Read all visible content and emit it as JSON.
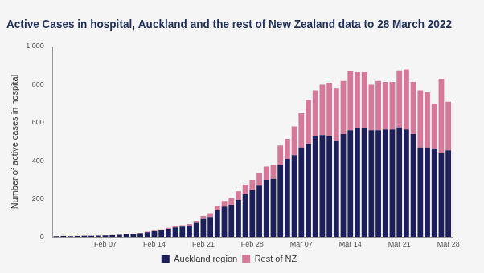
{
  "chart_data": {
    "type": "bar",
    "title": "Active Cases in hospital, Auckland and the rest of New Zealand data to 28 March 2022",
    "y_label": "Number of active cases in hospital",
    "categories": [
      null,
      null,
      null,
      null,
      null,
      null,
      null,
      "Feb 07",
      null,
      null,
      null,
      null,
      null,
      null,
      "Feb 14",
      null,
      null,
      null,
      null,
      null,
      null,
      "Feb 21",
      null,
      null,
      null,
      null,
      null,
      null,
      "Feb 28",
      null,
      null,
      null,
      null,
      null,
      null,
      "Mar 07",
      null,
      null,
      null,
      null,
      null,
      null,
      "Mar 14",
      null,
      null,
      null,
      null,
      null,
      null,
      "Mar 21",
      null,
      null,
      null,
      null,
      null,
      null,
      "Mar 28"
    ],
    "series": [
      {
        "name": "Auckland region",
        "color": "#1c1f5a",
        "values": [
          4,
          5,
          4,
          5,
          6,
          6,
          7,
          8,
          9,
          11,
          13,
          16,
          20,
          25,
          30,
          36,
          43,
          50,
          55,
          60,
          75,
          95,
          105,
          140,
          160,
          170,
          195,
          225,
          245,
          270,
          300,
          305,
          380,
          410,
          430,
          470,
          490,
          530,
          535,
          530,
          505,
          540,
          560,
          570,
          570,
          560,
          560,
          565,
          565,
          575,
          565,
          540,
          470,
          470,
          465,
          440,
          455
        ]
      },
      {
        "name": "Rest of NZ",
        "color": "#d5789a",
        "values": [
          1,
          1,
          1,
          1,
          1,
          1,
          1,
          1,
          1,
          1,
          2,
          2,
          2,
          3,
          3,
          4,
          5,
          6,
          7,
          8,
          10,
          15,
          20,
          25,
          30,
          35,
          45,
          50,
          55,
          65,
          70,
          75,
          100,
          105,
          150,
          180,
          230,
          240,
          265,
          280,
          275,
          280,
          310,
          295,
          295,
          240,
          260,
          250,
          250,
          300,
          315,
          275,
          300,
          290,
          235,
          390,
          255
        ]
      }
    ],
    "ylim": [
      0,
      1000
    ],
    "yticks": [
      0,
      200,
      400,
      600,
      800,
      {
        "value": 1000,
        "label": "1,000"
      }
    ],
    "stacked": true,
    "grid": false,
    "legend": "bottom"
  }
}
